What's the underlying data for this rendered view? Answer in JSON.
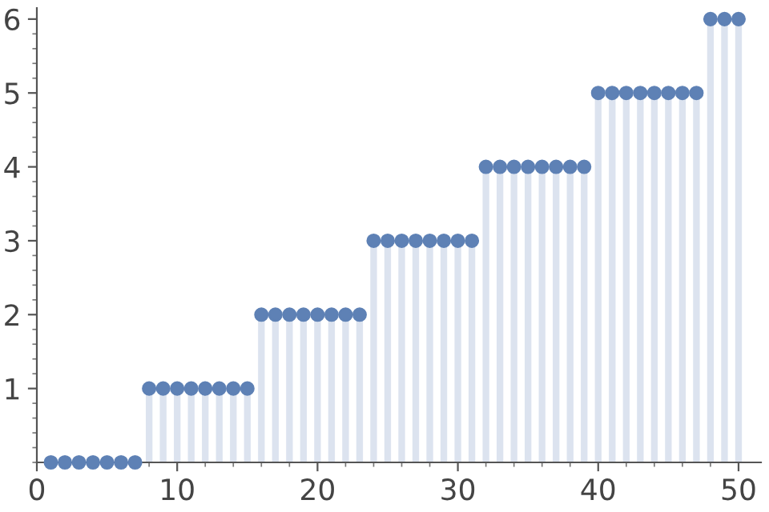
{
  "chart_data": {
    "type": "lollipop",
    "x": [
      1,
      2,
      3,
      4,
      5,
      6,
      7,
      8,
      9,
      10,
      11,
      12,
      13,
      14,
      15,
      16,
      17,
      18,
      19,
      20,
      21,
      22,
      23,
      24,
      25,
      26,
      27,
      28,
      29,
      30,
      31,
      32,
      33,
      34,
      35,
      36,
      37,
      38,
      39,
      40,
      41,
      42,
      43,
      44,
      45,
      46,
      47,
      48,
      49,
      50
    ],
    "values": [
      0,
      0,
      0,
      0,
      0,
      0,
      0,
      1,
      1,
      1,
      1,
      1,
      1,
      1,
      1,
      2,
      2,
      2,
      2,
      2,
      2,
      2,
      2,
      3,
      3,
      3,
      3,
      3,
      3,
      3,
      3,
      4,
      4,
      4,
      4,
      4,
      4,
      4,
      4,
      5,
      5,
      5,
      5,
      5,
      5,
      5,
      5,
      6,
      6,
      6
    ],
    "color": "#5e81b5",
    "marker": "circle",
    "xlim": [
      0,
      51.6
    ],
    "ylim": [
      0,
      6.15
    ],
    "xticks": [
      0,
      10,
      20,
      30,
      40,
      50
    ],
    "yticks": [
      1,
      2,
      3,
      4,
      5,
      6
    ]
  }
}
